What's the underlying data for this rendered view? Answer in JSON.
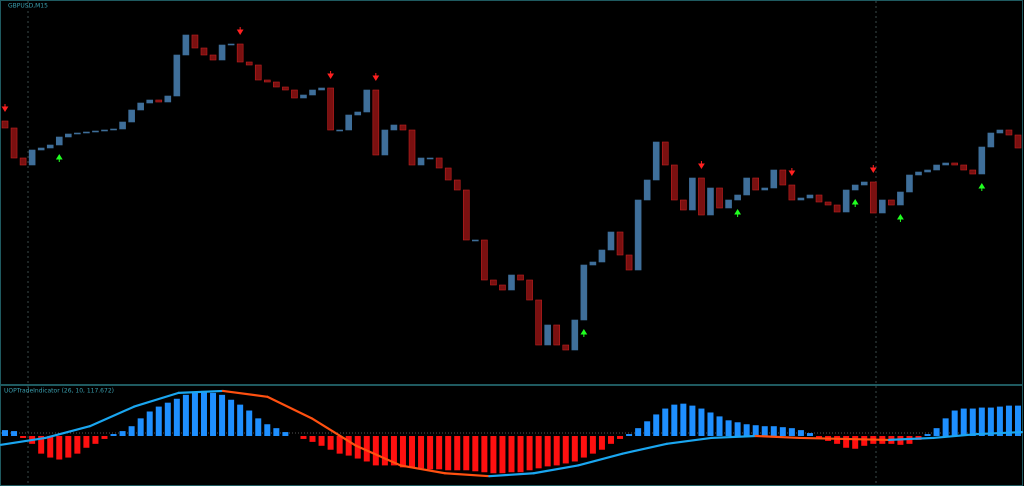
{
  "chart_data": [
    {
      "type": "candlestick",
      "title": "GBPUSD,M15",
      "open": [
        262,
        255,
        225,
        218,
        233,
        235,
        238,
        246,
        249,
        250,
        251,
        252,
        253,
        254,
        261,
        273,
        280,
        283,
        281,
        287,
        328,
        348,
        335,
        328,
        323,
        338,
        339,
        321,
        318,
        303,
        301,
        296,
        293,
        285,
        288,
        293,
        295,
        253,
        253,
        268,
        271,
        293,
        228,
        253,
        258,
        253,
        218,
        225,
        225,
        215,
        203,
        193,
        143,
        143,
        103,
        98,
        93,
        108,
        103,
        83,
        38,
        58,
        38,
        33,
        63,
        118,
        121,
        133,
        151,
        128,
        113,
        183,
        203,
        241,
        218,
        183,
        173,
        205,
        168,
        195,
        175,
        183,
        188,
        205,
        193,
        195,
        213,
        198,
        183,
        185,
        188,
        181,
        178,
        171,
        193,
        198,
        201,
        170,
        183,
        178,
        191,
        208,
        211,
        213,
        218,
        220,
        218,
        213,
        209,
        236,
        250,
        253,
        248
      ],
      "close": [
        255,
        225,
        218,
        233,
        235,
        238,
        246,
        249,
        250,
        251,
        252,
        253,
        254,
        261,
        273,
        280,
        283,
        281,
        287,
        328,
        348,
        335,
        328,
        323,
        338,
        339,
        321,
        318,
        303,
        301,
        296,
        293,
        285,
        288,
        293,
        295,
        253,
        253,
        268,
        271,
        293,
        228,
        253,
        258,
        253,
        218,
        225,
        225,
        215,
        203,
        193,
        143,
        143,
        103,
        98,
        93,
        108,
        103,
        83,
        38,
        58,
        38,
        33,
        63,
        118,
        121,
        133,
        151,
        128,
        113,
        183,
        203,
        241,
        218,
        183,
        173,
        205,
        168,
        195,
        175,
        183,
        188,
        205,
        193,
        195,
        213,
        198,
        183,
        185,
        188,
        181,
        178,
        171,
        193,
        198,
        201,
        170,
        183,
        178,
        191,
        208,
        211,
        213,
        218,
        220,
        218,
        213,
        209,
        236,
        250,
        253,
        248,
        235
      ],
      "ylim": [
        0,
        378
      ],
      "up_color": "#3f6f9a",
      "down_color": "#7a1010",
      "sell_signals": [
        0,
        26,
        36,
        41,
        77,
        87,
        96
      ],
      "buy_signals": [
        6,
        64,
        81,
        94,
        99,
        108
      ],
      "sell_color": "#ff2020",
      "buy_color": "#20ff20"
    },
    {
      "type": "histogram",
      "title": "UOPTradeIndicator (26, 10, 117.672)",
      "values": [
        6,
        5,
        -2,
        -8,
        -18,
        -22,
        -24,
        -22,
        -18,
        -12,
        -8,
        -3,
        2,
        5,
        10,
        18,
        25,
        30,
        34,
        38,
        42,
        45,
        46,
        44,
        42,
        37,
        32,
        26,
        18,
        12,
        8,
        4,
        0,
        -3,
        -6,
        -10,
        -14,
        -18,
        -20,
        -23,
        -26,
        -30,
        -30,
        -30,
        -32,
        -32,
        -33,
        -34,
        -34,
        -35,
        -35,
        -35,
        -36,
        -37,
        -38,
        -38,
        -37,
        -37,
        -35,
        -33,
        -31,
        -30,
        -28,
        -26,
        -22,
        -18,
        -14,
        -8,
        -3,
        2,
        8,
        15,
        22,
        28,
        32,
        33,
        31,
        28,
        24,
        20,
        16,
        14,
        12,
        11,
        10,
        10,
        9,
        8,
        6,
        3,
        -2,
        -5,
        -8,
        -12,
        -13,
        -10,
        -8,
        -8,
        -8,
        -9,
        -8,
        -4,
        2,
        8,
        18,
        26,
        28,
        28,
        29,
        29,
        30,
        31,
        31
      ],
      "line_values": [
        -9,
        -2,
        10,
        30,
        44,
        46,
        40,
        18,
        -10,
        -30,
        -38,
        -41,
        -38,
        -30,
        -18,
        -8,
        -2,
        0,
        -2,
        -3,
        -4,
        -2,
        2,
        4
      ],
      "ylim": [
        -50,
        50
      ],
      "up_color": "#1e8fff",
      "down_color": "#ff1010",
      "line_up_color": "#1aa6f0",
      "line_down_color": "#ff5010"
    }
  ]
}
